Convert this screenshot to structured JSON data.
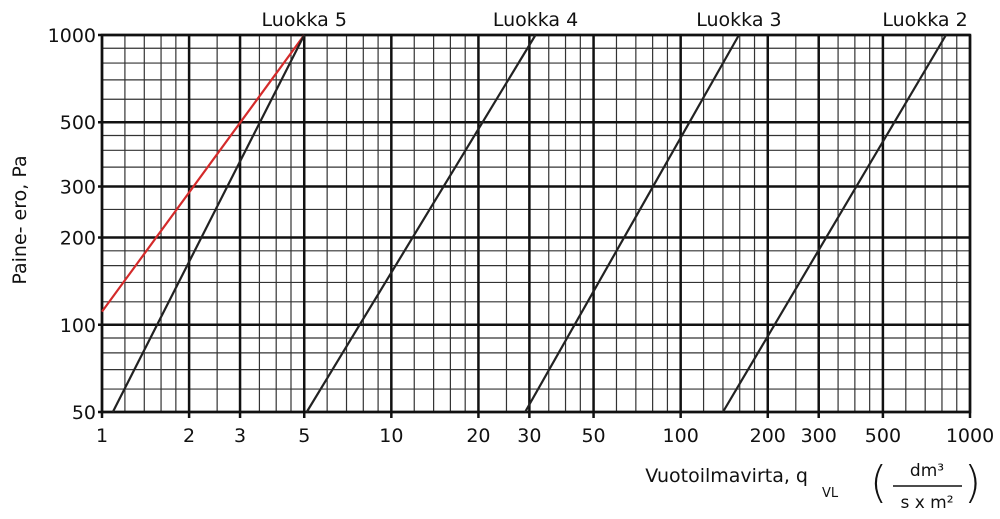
{
  "chart_data": {
    "type": "line",
    "y_label": "Paine- ero, Pa",
    "x_label": "Vuotoilmavirta, q",
    "x_label_subscript": "VL",
    "unit_numerator": "dm³",
    "unit_denominator": "s x m²",
    "xscale": "log",
    "yscale": "log",
    "xlim": [
      1,
      1000
    ],
    "ylim": [
      50,
      1000
    ],
    "xticks": [
      1,
      2,
      3,
      5,
      10,
      20,
      30,
      50,
      100,
      200,
      300,
      500,
      1000
    ],
    "yticks": [
      50,
      100,
      200,
      300,
      500,
      1000
    ],
    "minor_xticks": [
      1.2,
      1.4,
      1.6,
      1.8,
      2.5,
      3.5,
      4,
      4.5,
      6,
      7,
      8,
      9,
      12,
      14,
      16,
      18,
      25,
      35,
      40,
      45,
      60,
      70,
      80,
      90,
      120,
      140,
      160,
      180,
      250,
      350,
      400,
      450,
      600,
      700,
      800,
      900
    ],
    "minor_yticks": [
      60,
      70,
      80,
      90,
      120,
      140,
      160,
      180,
      250,
      350,
      400,
      450,
      600,
      700,
      800,
      900
    ],
    "grid": true,
    "series": [
      {
        "color": "#d42a2a",
        "x": [
          1,
          5
        ],
        "values": [
          111,
          1000
        ]
      },
      {
        "name": "Luokka 5",
        "color": "#222222",
        "x": [
          1.09,
          5
        ],
        "values": [
          50,
          1000
        ]
      },
      {
        "name": "Luokka 4",
        "color": "#222222",
        "x": [
          5.1,
          31.5
        ],
        "values": [
          50,
          1000
        ]
      },
      {
        "name": "Luokka 3",
        "color": "#222222",
        "x": [
          29,
          159
        ],
        "values": [
          50,
          1000
        ]
      },
      {
        "name": "Luokka 2",
        "color": "#222222",
        "x": [
          140,
          826
        ],
        "values": [
          50,
          1000
        ]
      }
    ]
  }
}
